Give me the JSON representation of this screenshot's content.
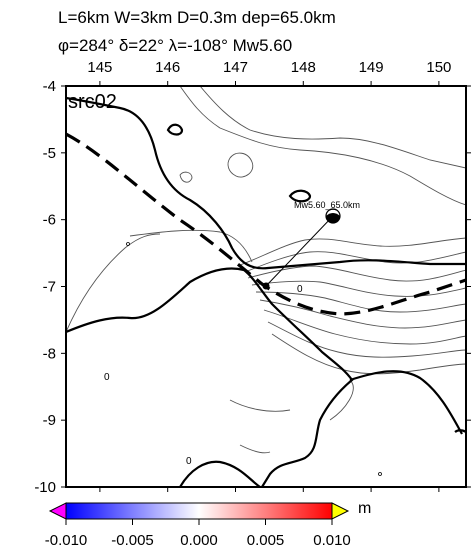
{
  "header": {
    "line1": "L=6km W=3km D=0.3m dep=65.0km",
    "line2": "φ=284° δ=22° λ=-108° Mw5.60"
  },
  "panel_label": "src02",
  "x_axis": {
    "ticks": [
      "145",
      "146",
      "147",
      "148",
      "149",
      "150"
    ],
    "range": [
      144.5,
      150.4
    ]
  },
  "y_axis": {
    "ticks": [
      "-4",
      "-5",
      "-6",
      "-7",
      "-8",
      "-9",
      "-10"
    ],
    "range": [
      -10,
      -4
    ]
  },
  "source_label": "Mw5.60_65.0km",
  "contour_labels": [
    "0",
    "0",
    "0"
  ],
  "colorbar": {
    "unit": "m",
    "range": [
      -0.01,
      0.01
    ],
    "ticks": [
      "-0.010",
      "-0.005",
      "0.000",
      "0.005",
      "0.010"
    ],
    "colors": {
      "low": "#0000ff",
      "mid": "#ffffff",
      "high": "#ff0000",
      "under": "#ff00ff",
      "over": "#ffff00"
    }
  }
}
